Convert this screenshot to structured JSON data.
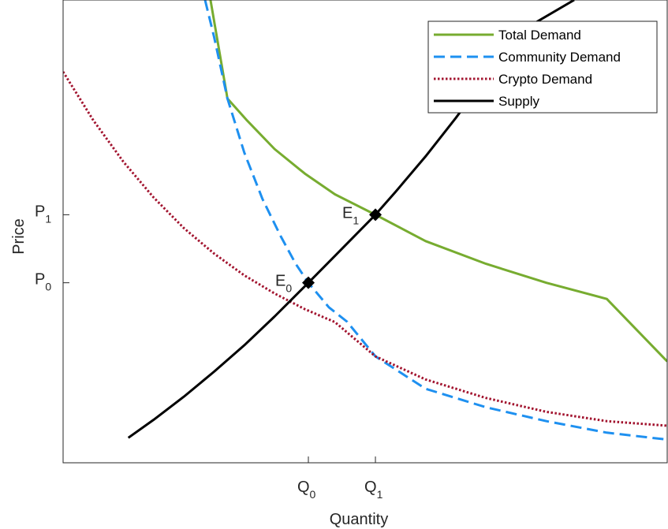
{
  "chart_data": {
    "type": "line",
    "xlabel": "Quantity",
    "ylabel": "Price",
    "x_ticks": [
      {
        "main": "Q",
        "sub": "0",
        "x": 0.406
      },
      {
        "main": "Q",
        "sub": "1",
        "x": 0.517
      }
    ],
    "y_ticks": [
      {
        "main": "P",
        "sub": "0",
        "y": 0.389
      },
      {
        "main": "P",
        "sub": "1",
        "y": 0.536
      }
    ],
    "xlim": [
      0,
      1
    ],
    "ylim": [
      0,
      1
    ],
    "grid": false,
    "legend_position": "top-right",
    "series": [
      {
        "name": "Total Demand",
        "color": "#77AC30",
        "dash": "solid",
        "x": [
          0.244,
          0.272,
          0.305,
          0.35,
          0.4,
          0.45,
          0.517,
          0.6,
          0.7,
          0.8,
          0.9,
          1.0
        ],
        "y": [
          1.0,
          0.787,
          0.739,
          0.678,
          0.625,
          0.58,
          0.536,
          0.479,
          0.43,
          0.389,
          0.354,
          0.219
        ]
      },
      {
        "name": "Community Demand",
        "color": "#1E90F0",
        "dash": "dashed",
        "x": [
          0.235,
          0.25,
          0.272,
          0.3,
          0.33,
          0.36,
          0.385,
          0.406,
          0.44,
          0.47,
          0.517,
          0.6,
          0.7,
          0.8,
          0.9,
          1.0
        ],
        "y": [
          1.0,
          0.92,
          0.787,
          0.67,
          0.57,
          0.49,
          0.43,
          0.389,
          0.336,
          0.305,
          0.23,
          0.16,
          0.12,
          0.09,
          0.065,
          0.05
        ],
        "sampled": true
      },
      {
        "name": "Crypto Demand",
        "color": "#A2142F",
        "dash": "dotted",
        "x": [
          0.0,
          0.05,
          0.1,
          0.15,
          0.2,
          0.25,
          0.3,
          0.35,
          0.4,
          0.45,
          0.517,
          0.6,
          0.7,
          0.8,
          0.9,
          1.0
        ],
        "y": [
          0.845,
          0.74,
          0.65,
          0.573,
          0.507,
          0.452,
          0.405,
          0.366,
          0.332,
          0.304,
          0.23,
          0.18,
          0.14,
          0.11,
          0.09,
          0.08
        ],
        "sampled": true
      },
      {
        "name": "Supply",
        "color": "#000000",
        "dash": "solid",
        "x": [
          0.108,
          0.15,
          0.2,
          0.25,
          0.3,
          0.35,
          0.406,
          0.45,
          0.517,
          0.55,
          0.6,
          0.65,
          0.7,
          0.75,
          0.846
        ],
        "y": [
          0.054,
          0.093,
          0.143,
          0.197,
          0.254,
          0.316,
          0.389,
          0.447,
          0.536,
          0.585,
          0.662,
          0.745,
          0.833,
          0.927,
          1.0
        ],
        "sampled": true
      }
    ],
    "points": [
      {
        "label": "E",
        "sub": "0",
        "x": 0.406,
        "y": 0.389
      },
      {
        "label": "E",
        "sub": "1",
        "x": 0.517,
        "y": 0.536
      }
    ]
  }
}
